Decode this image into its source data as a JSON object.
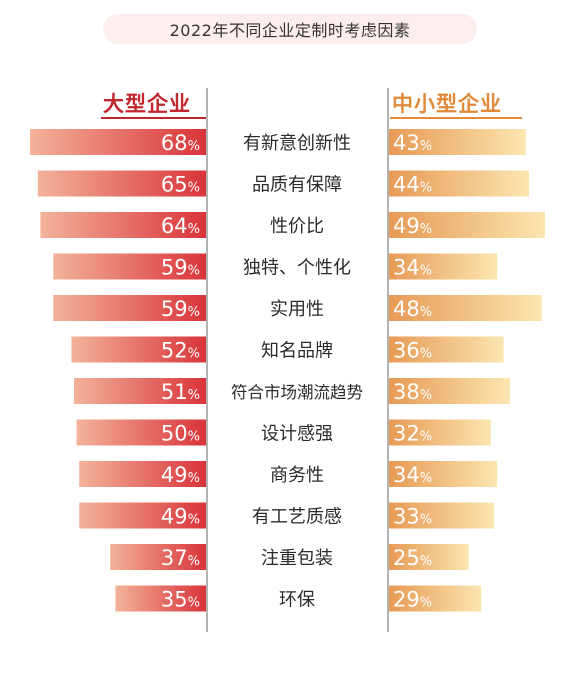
{
  "page": {
    "title": "2022年不同企业定制时考虑因素",
    "left_colors": {
      "dark": "#d9343a",
      "light": "#f3b39a"
    },
    "right_colors": {
      "dark": "#e79a55",
      "light": "#fbe6b0"
    },
    "left_title_color": "#c0282d",
    "right_title_color": "#e08a3a"
  },
  "chart_data": {
    "type": "bar",
    "title": "2022年不同企业定制时考虑因素",
    "unit": "%",
    "categories": [
      "有新意创新性",
      "品质有保障",
      "性价比",
      "独特、个性化",
      "实用性",
      "知名品牌",
      "符合市场潮流趋势",
      "设计感强",
      "商务性",
      "有工艺质感",
      "注重包装",
      "环保"
    ],
    "series": [
      {
        "name": "大型企业",
        "values": [
          68,
          65,
          64,
          59,
          59,
          52,
          51,
          50,
          49,
          49,
          37,
          35
        ]
      },
      {
        "name": "中小型企业",
        "values": [
          43,
          44,
          49,
          34,
          48,
          36,
          38,
          32,
          34,
          33,
          25,
          29
        ]
      }
    ]
  }
}
